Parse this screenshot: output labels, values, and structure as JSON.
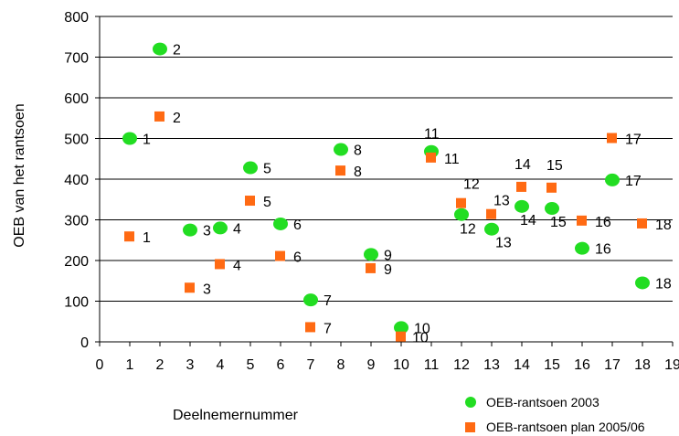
{
  "chart_data": {
    "type": "scatter",
    "title": "",
    "xlabel": "Deelnemernummer",
    "ylabel": "OEB van het rantsoen",
    "xlim": [
      0,
      19
    ],
    "ylim": [
      0,
      800
    ],
    "xticks": [
      0,
      1,
      2,
      3,
      4,
      5,
      6,
      7,
      8,
      9,
      10,
      11,
      12,
      13,
      14,
      15,
      16,
      17,
      18,
      19
    ],
    "yticks": [
      0,
      100,
      200,
      300,
      400,
      500,
      600,
      700,
      800
    ],
    "grid": "horizontal",
    "legend_position": "bottom-right",
    "series": [
      {
        "name": "OEB-rantsoen 2003",
        "marker": "circle",
        "color": "#22dd22",
        "points": [
          {
            "x": 1,
            "y": 500,
            "label": "1"
          },
          {
            "x": 2,
            "y": 720,
            "label": "2"
          },
          {
            "x": 3,
            "y": 275,
            "label": "3"
          },
          {
            "x": 4,
            "y": 280,
            "label": "4"
          },
          {
            "x": 5,
            "y": 428,
            "label": "5"
          },
          {
            "x": 6,
            "y": 290,
            "label": "6"
          },
          {
            "x": 7,
            "y": 103,
            "label": "7"
          },
          {
            "x": 8,
            "y": 473,
            "label": "8"
          },
          {
            "x": 9,
            "y": 215,
            "label": "9"
          },
          {
            "x": 10,
            "y": 35,
            "label": "10"
          },
          {
            "x": 11,
            "y": 468,
            "label": "11"
          },
          {
            "x": 12,
            "y": 313,
            "label": "12"
          },
          {
            "x": 13,
            "y": 277,
            "label": "13"
          },
          {
            "x": 14,
            "y": 333,
            "label": "14"
          },
          {
            "x": 15,
            "y": 328,
            "label": "15"
          },
          {
            "x": 16,
            "y": 230,
            "label": "16"
          },
          {
            "x": 17,
            "y": 398,
            "label": "17"
          },
          {
            "x": 18,
            "y": 145,
            "label": "18"
          }
        ]
      },
      {
        "name": "OEB-rantsoen plan 2005/06",
        "marker": "square",
        "color": "#ff6a13",
        "points": [
          {
            "x": 1,
            "y": 258,
            "label": "1"
          },
          {
            "x": 2,
            "y": 553,
            "label": "2"
          },
          {
            "x": 3,
            "y": 132,
            "label": "3"
          },
          {
            "x": 4,
            "y": 190,
            "label": "4"
          },
          {
            "x": 5,
            "y": 346,
            "label": "5"
          },
          {
            "x": 6,
            "y": 210,
            "label": "6"
          },
          {
            "x": 7,
            "y": 35,
            "label": "7"
          },
          {
            "x": 8,
            "y": 420,
            "label": "8"
          },
          {
            "x": 9,
            "y": 180,
            "label": "9"
          },
          {
            "x": 10,
            "y": 12,
            "label": "10"
          },
          {
            "x": 11,
            "y": 452,
            "label": "11"
          },
          {
            "x": 12,
            "y": 340,
            "label": "12"
          },
          {
            "x": 13,
            "y": 313,
            "label": "13"
          },
          {
            "x": 14,
            "y": 380,
            "label": "14"
          },
          {
            "x": 15,
            "y": 378,
            "label": "15"
          },
          {
            "x": 16,
            "y": 297,
            "label": "16"
          },
          {
            "x": 17,
            "y": 500,
            "label": "17"
          },
          {
            "x": 18,
            "y": 290,
            "label": "18"
          }
        ]
      }
    ]
  }
}
